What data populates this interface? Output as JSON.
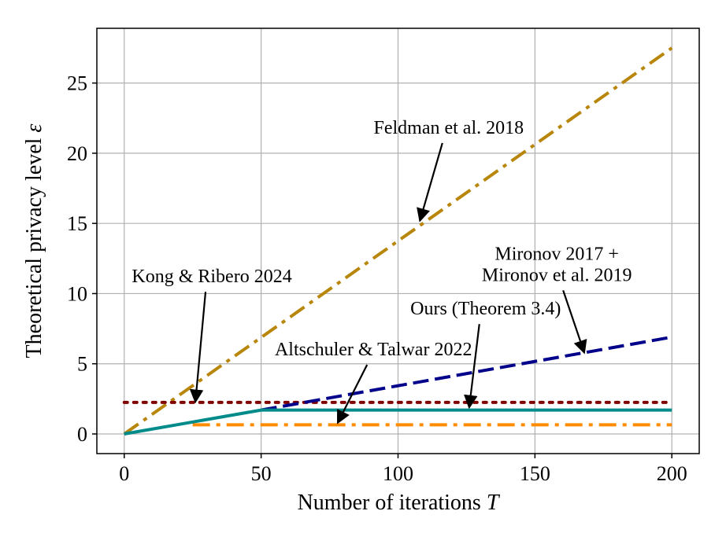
{
  "chart_data": {
    "type": "line",
    "xlabel": "Number of iterations T",
    "xlabel_main": "Number of iterations ",
    "xlabel_symbol": "T",
    "ylabel": "Theoretical privacy level ε",
    "ylabel_main": "Theoretical privacy level ",
    "ylabel_symbol": "ε",
    "xlim": [
      -10,
      210
    ],
    "ylim": [
      -1.4,
      28.9
    ],
    "xticks": [
      0,
      50,
      100,
      150,
      200
    ],
    "yticks": [
      0,
      5,
      10,
      15,
      20,
      25
    ],
    "grid": true,
    "series": [
      {
        "name": "Feldman et al. 2018",
        "color": "#b8860b",
        "style": "dashdot",
        "x": [
          0,
          200
        ],
        "y": [
          0,
          27.5
        ]
      },
      {
        "name": "Mironov 2017 + Mironov et al. 2019",
        "color": "#00008b",
        "style": "dashed",
        "x": [
          50,
          200
        ],
        "y": [
          1.7,
          6.9
        ]
      },
      {
        "name": "Kong & Ribero 2024",
        "color": "#800000",
        "style": "dotted",
        "x": [
          0,
          200
        ],
        "y": [
          2.25,
          2.25
        ]
      },
      {
        "name": "Altschuler & Talwar 2022",
        "color": "#ff8c00",
        "style": "dashdot",
        "x": [
          25,
          200
        ],
        "y": [
          0.65,
          0.65
        ]
      },
      {
        "name": "Ours (Theorem 3.4)",
        "color": "#008b8b",
        "style": "solid",
        "x": [
          0,
          25,
          50,
          200
        ],
        "y": [
          0,
          0.85,
          1.7,
          1.7
        ]
      }
    ],
    "annotations": [
      {
        "text": "Feldman et al. 2018",
        "text_at": [
          118.5,
          21.4
        ],
        "arrow_to": [
          108,
          15.2
        ]
      },
      {
        "text": "Mironov 2017 +",
        "text_at": [
          158,
          12.4
        ],
        "arrow_to": null
      },
      {
        "text": "Mironov et al. 2019",
        "text_at": [
          158,
          10.9
        ],
        "arrow_to": [
          168,
          5.8
        ]
      },
      {
        "text": "Kong & Ribero 2024",
        "text_at": [
          32,
          10.8
        ],
        "arrow_to": [
          26,
          2.3
        ]
      },
      {
        "text": "Ours (Theorem 3.4)",
        "text_at": [
          132,
          8.5
        ],
        "arrow_to": [
          126,
          1.9
        ]
      },
      {
        "text": "Altschuler & Talwar 2022",
        "text_at": [
          91,
          5.6
        ],
        "arrow_to": [
          78,
          0.8
        ]
      }
    ]
  }
}
